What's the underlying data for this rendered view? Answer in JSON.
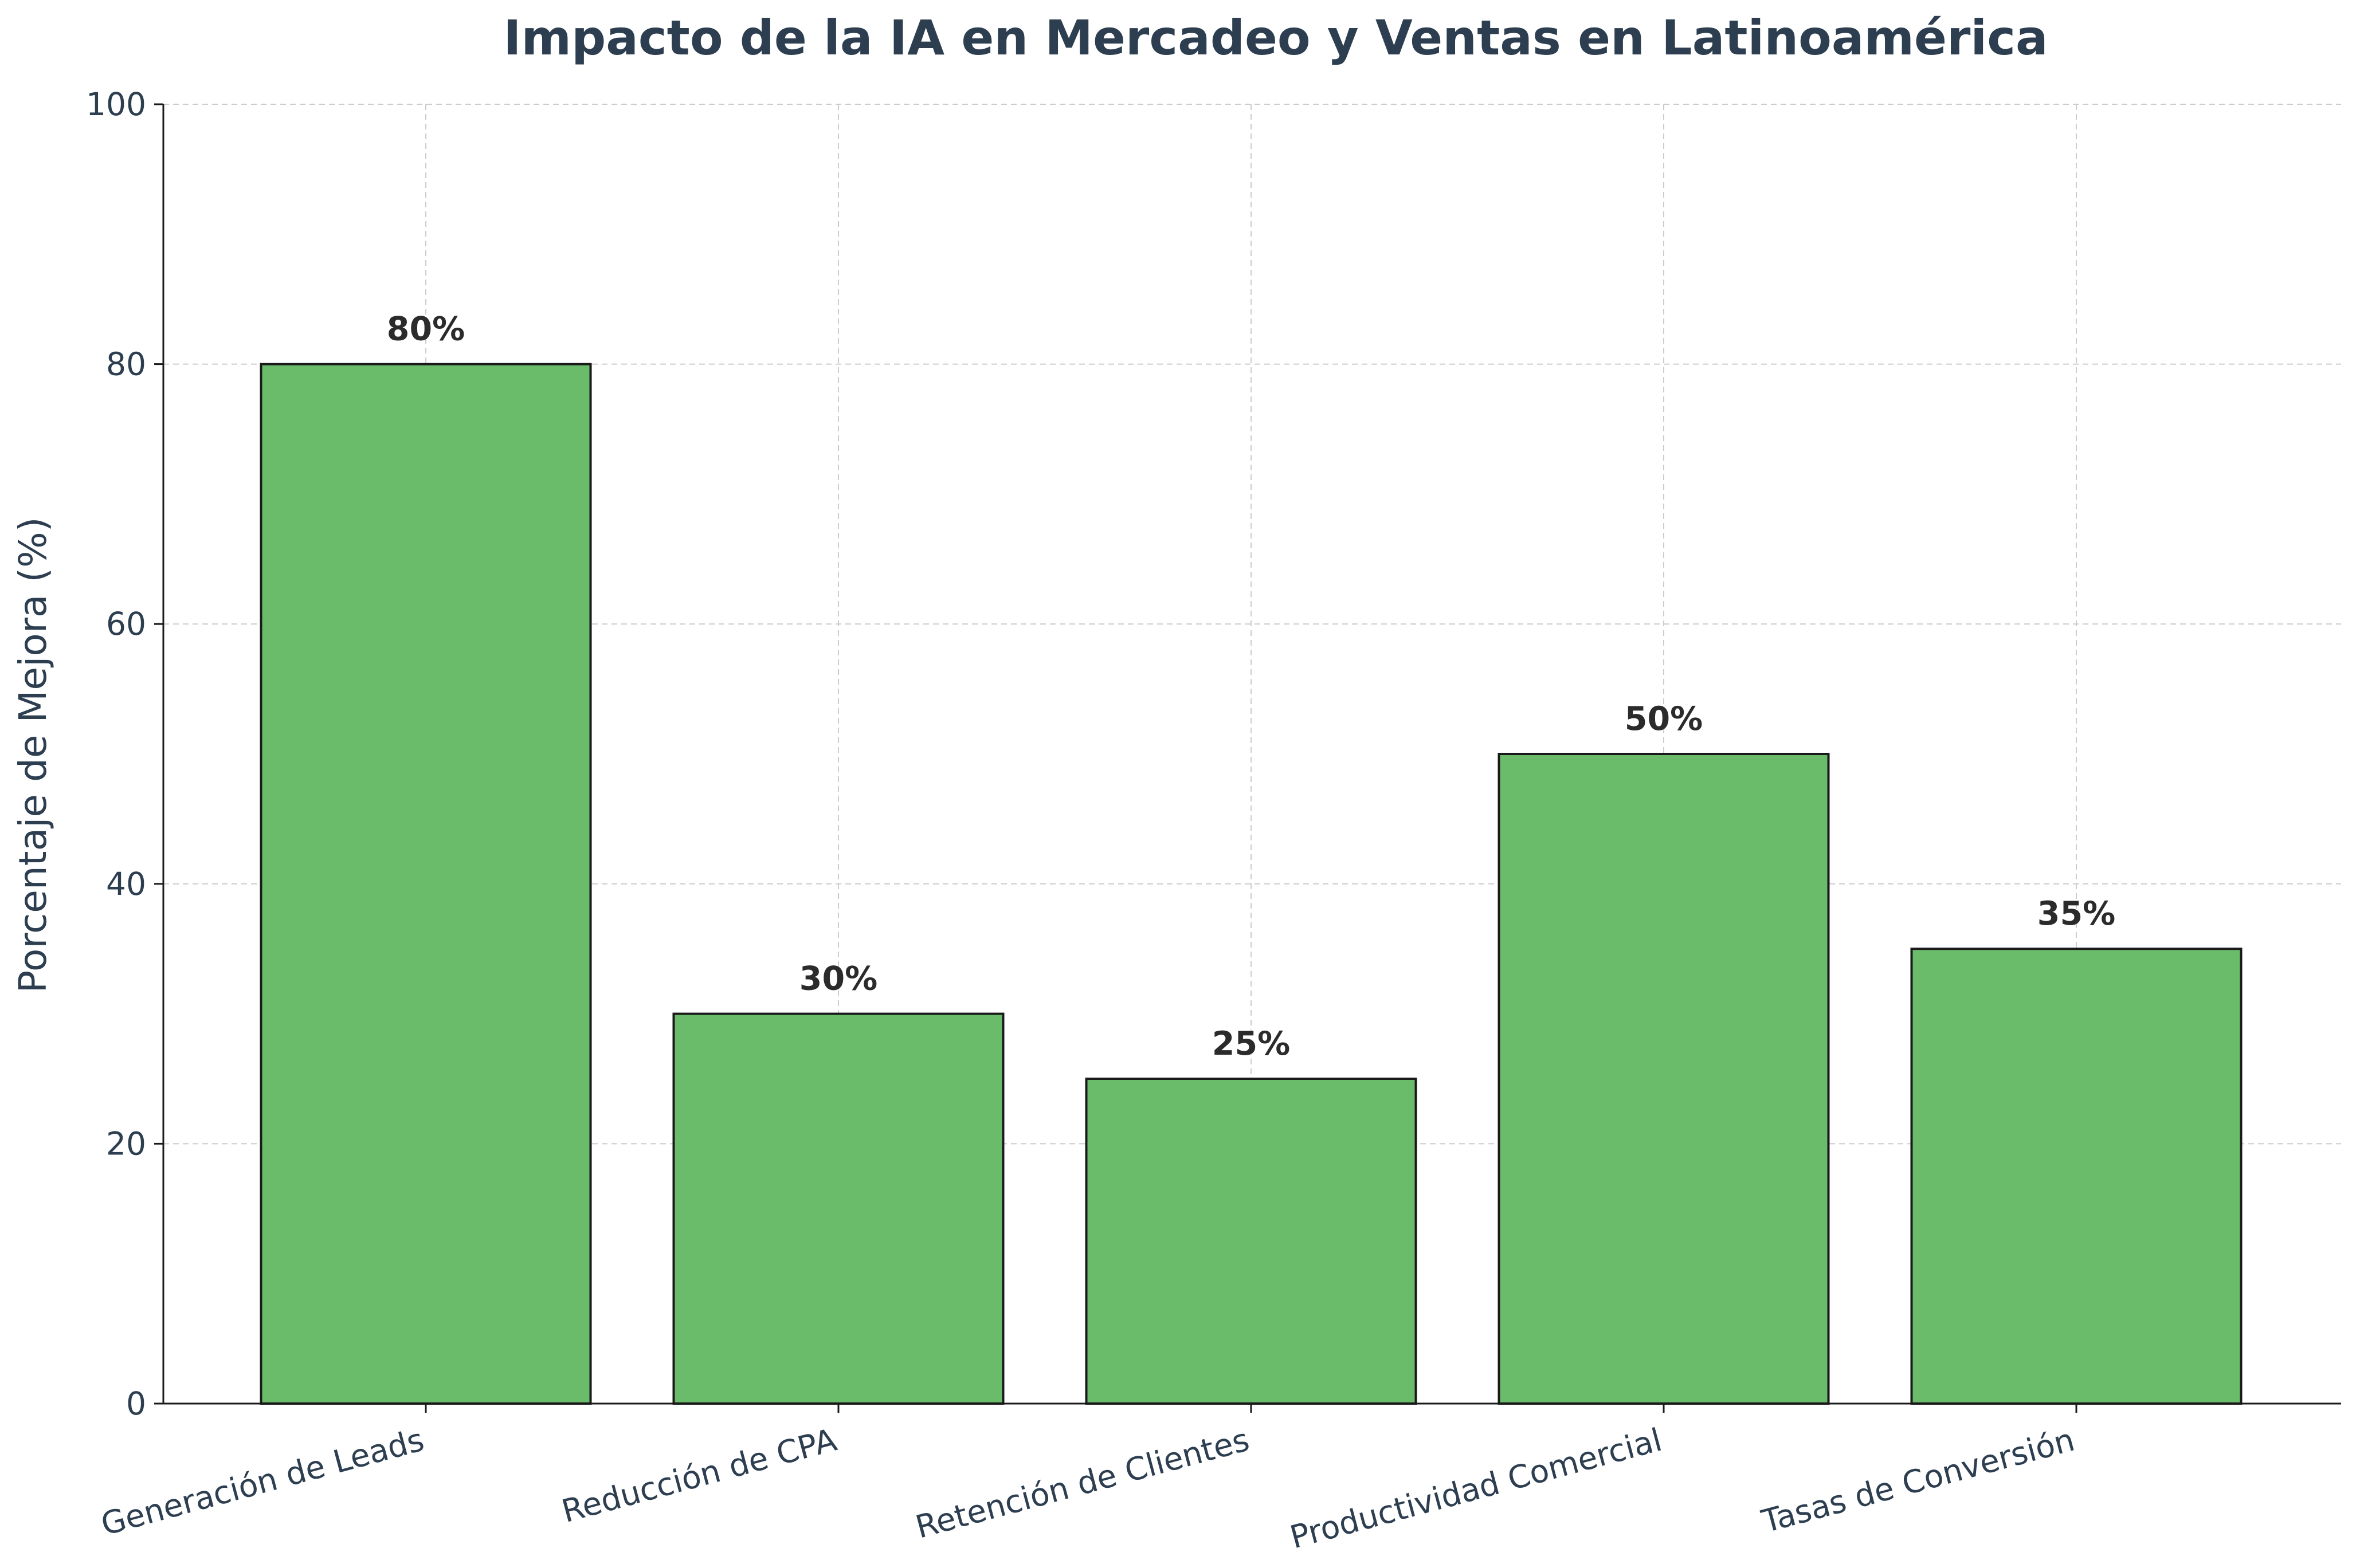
{
  "chart_data": {
    "type": "bar",
    "title": "Impacto de la IA en Mercadeo y Ventas en Latinoamérica",
    "xlabel": "",
    "ylabel": "Porcentaje de Mejora (%)",
    "categories": [
      "Generación de Leads",
      "Reducción de CPA",
      "Retención de Clientes",
      "Productividad Comercial",
      "Tasas de Conversión"
    ],
    "values": [
      80,
      30,
      25,
      50,
      35
    ],
    "data_labels": [
      "80%",
      "30%",
      "25%",
      "50%",
      "35%"
    ],
    "ylim": [
      0,
      100
    ],
    "yticks": [
      0,
      20,
      40,
      60,
      80,
      100
    ],
    "grid": true,
    "colors": {
      "bar_fill": "#6abb6a",
      "bar_edge": "#1a1a1a",
      "text": "#2c3e50",
      "data_label": "#2b2b2b",
      "axis": "#1a1a1a"
    }
  }
}
